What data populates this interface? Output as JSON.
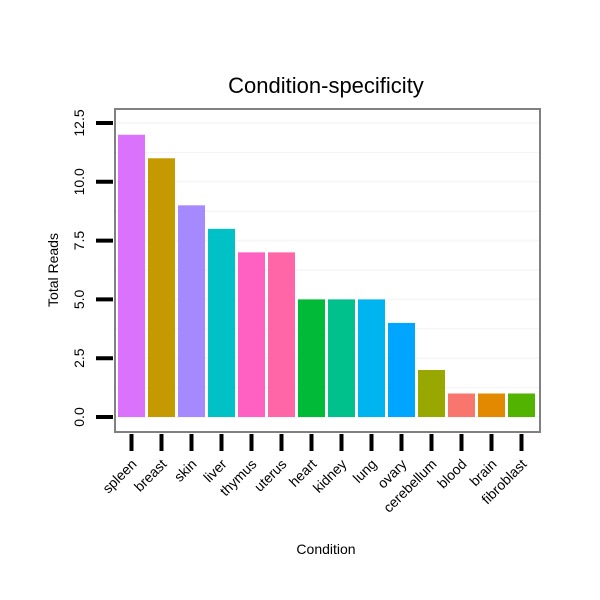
{
  "chart_data": {
    "type": "bar",
    "title": "Condition-specificity",
    "xlabel": "Condition",
    "ylabel": "Total Reads",
    "ylim": [
      0,
      12.5
    ],
    "yticks": [
      0.0,
      2.5,
      5.0,
      7.5,
      10.0,
      12.5
    ],
    "ytick_labels": [
      "0.0",
      "2.5",
      "5.0",
      "7.5",
      "10.0",
      "12.5"
    ],
    "categories": [
      "spleen",
      "breast",
      "skin",
      "liver",
      "thymus",
      "uterus",
      "heart",
      "kidney",
      "lung",
      "ovary",
      "cerebellum",
      "blood",
      "brain",
      "fibroblast"
    ],
    "values": [
      12,
      11,
      9,
      8,
      7,
      7,
      5,
      5,
      5,
      4,
      2,
      1,
      1,
      1
    ],
    "colors": [
      "#DB72FB",
      "#C49A00",
      "#A58AFF",
      "#00C1C6",
      "#FF61C3",
      "#FF66A8",
      "#00BA38",
      "#00C08B",
      "#00B4EF",
      "#00A5FF",
      "#99A800",
      "#F8766D",
      "#E38900",
      "#53B400"
    ],
    "grid": true,
    "legend": "none"
  }
}
